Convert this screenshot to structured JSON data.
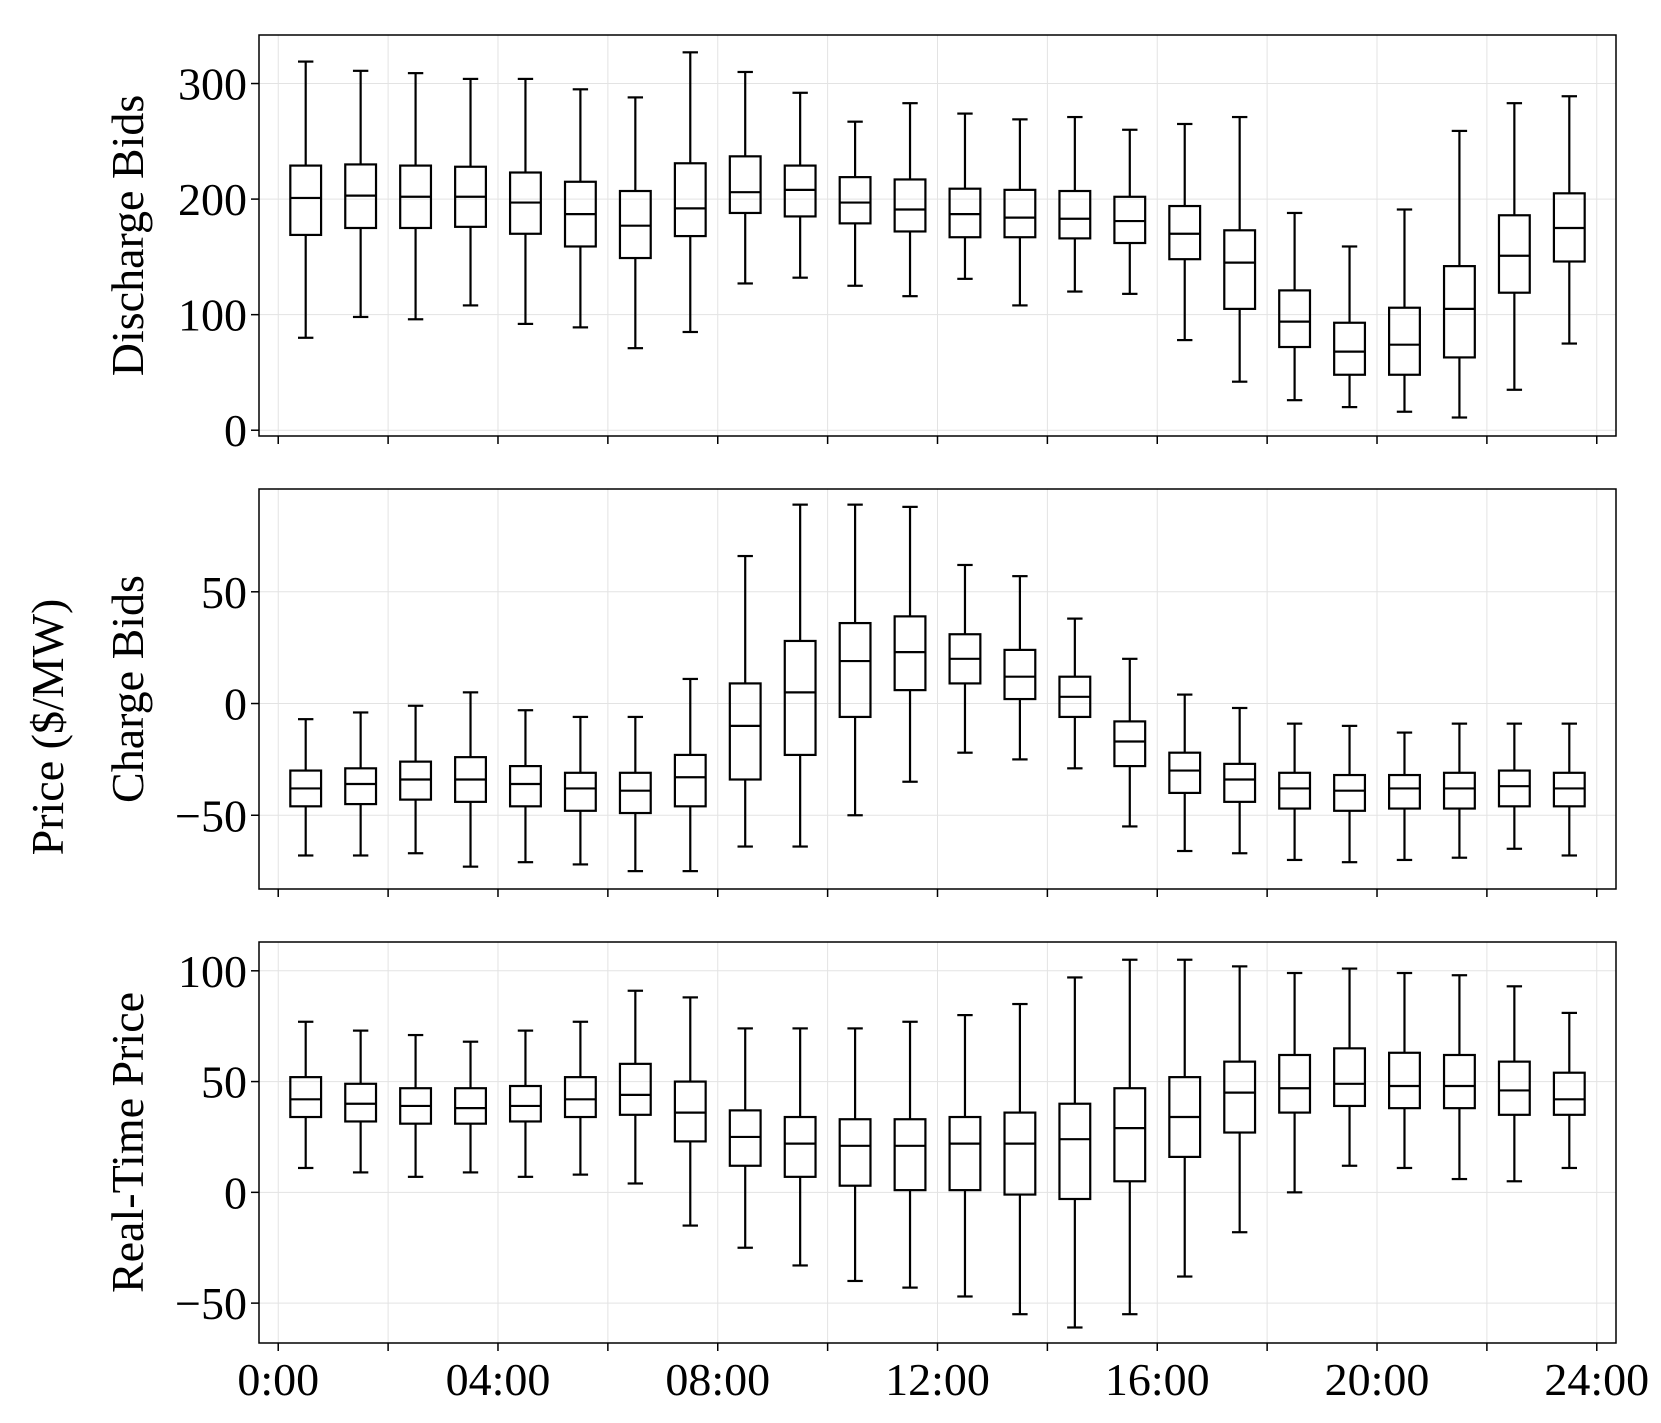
{
  "figure": {
    "shared_ylabel": "Price ($/MW)",
    "x_tick_labels": [
      "0:00",
      "04:00",
      "08:00",
      "12:00",
      "16:00",
      "20:00",
      "24:00"
    ]
  },
  "chart_data": [
    {
      "type": "box",
      "ylabel": "Discharge Bids",
      "ylim": [
        -5,
        342
      ],
      "yticks": [
        0,
        100,
        200,
        300
      ],
      "ytick_labels": [
        "0",
        "100",
        "200",
        "300"
      ],
      "grid": true,
      "line_color": "#000000",
      "grid_color": "#e3e3e3",
      "boxes": [
        {
          "hour": 0.5,
          "whislo": 80,
          "q1": 169,
          "med": 201,
          "q3": 229,
          "whishi": 319
        },
        {
          "hour": 1.5,
          "whislo": 98,
          "q1": 175,
          "med": 203,
          "q3": 230,
          "whishi": 311
        },
        {
          "hour": 2.5,
          "whislo": 96,
          "q1": 175,
          "med": 202,
          "q3": 229,
          "whishi": 309
        },
        {
          "hour": 3.5,
          "whislo": 108,
          "q1": 176,
          "med": 202,
          "q3": 228,
          "whishi": 304
        },
        {
          "hour": 4.5,
          "whislo": 92,
          "q1": 170,
          "med": 197,
          "q3": 223,
          "whishi": 304
        },
        {
          "hour": 5.5,
          "whislo": 89,
          "q1": 159,
          "med": 187,
          "q3": 215,
          "whishi": 295
        },
        {
          "hour": 6.5,
          "whislo": 71,
          "q1": 149,
          "med": 177,
          "q3": 207,
          "whishi": 288
        },
        {
          "hour": 7.5,
          "whislo": 85,
          "q1": 168,
          "med": 192,
          "q3": 231,
          "whishi": 327
        },
        {
          "hour": 8.5,
          "whislo": 127,
          "q1": 188,
          "med": 206,
          "q3": 237,
          "whishi": 310
        },
        {
          "hour": 9.5,
          "whislo": 132,
          "q1": 185,
          "med": 208,
          "q3": 229,
          "whishi": 292
        },
        {
          "hour": 10.5,
          "whislo": 125,
          "q1": 179,
          "med": 197,
          "q3": 219,
          "whishi": 267
        },
        {
          "hour": 11.5,
          "whislo": 116,
          "q1": 172,
          "med": 191,
          "q3": 217,
          "whishi": 283
        },
        {
          "hour": 12.5,
          "whislo": 131,
          "q1": 167,
          "med": 187,
          "q3": 209,
          "whishi": 274
        },
        {
          "hour": 13.5,
          "whislo": 108,
          "q1": 167,
          "med": 184,
          "q3": 208,
          "whishi": 269
        },
        {
          "hour": 14.5,
          "whislo": 120,
          "q1": 166,
          "med": 183,
          "q3": 207,
          "whishi": 271
        },
        {
          "hour": 15.5,
          "whislo": 118,
          "q1": 162,
          "med": 181,
          "q3": 202,
          "whishi": 260
        },
        {
          "hour": 16.5,
          "whislo": 78,
          "q1": 148,
          "med": 170,
          "q3": 194,
          "whishi": 265
        },
        {
          "hour": 17.5,
          "whislo": 42,
          "q1": 105,
          "med": 145,
          "q3": 173,
          "whishi": 271
        },
        {
          "hour": 18.5,
          "whislo": 26,
          "q1": 72,
          "med": 94,
          "q3": 121,
          "whishi": 188
        },
        {
          "hour": 19.5,
          "whislo": 20,
          "q1": 48,
          "med": 68,
          "q3": 93,
          "whishi": 159
        },
        {
          "hour": 20.5,
          "whislo": 16,
          "q1": 48,
          "med": 74,
          "q3": 106,
          "whishi": 191
        },
        {
          "hour": 21.5,
          "whislo": 11,
          "q1": 63,
          "med": 105,
          "q3": 142,
          "whishi": 259
        },
        {
          "hour": 22.5,
          "whislo": 35,
          "q1": 119,
          "med": 151,
          "q3": 186,
          "whishi": 283
        },
        {
          "hour": 23.5,
          "whislo": 75,
          "q1": 146,
          "med": 175,
          "q3": 205,
          "whishi": 289
        }
      ]
    },
    {
      "type": "box",
      "ylabel": "Charge Bids",
      "ylim": [
        -83,
        96
      ],
      "yticks": [
        -50,
        0,
        50
      ],
      "ytick_labels": [
        "−50",
        "0",
        "50"
      ],
      "grid": true,
      "line_color": "#000000",
      "grid_color": "#e3e3e3",
      "boxes": [
        {
          "hour": 0.5,
          "whislo": -68,
          "q1": -46,
          "med": -38,
          "q3": -30,
          "whishi": -7
        },
        {
          "hour": 1.5,
          "whislo": -68,
          "q1": -45,
          "med": -36,
          "q3": -29,
          "whishi": -4
        },
        {
          "hour": 2.5,
          "whislo": -67,
          "q1": -43,
          "med": -34,
          "q3": -26,
          "whishi": -1
        },
        {
          "hour": 3.5,
          "whislo": -73,
          "q1": -44,
          "med": -34,
          "q3": -24,
          "whishi": 5
        },
        {
          "hour": 4.5,
          "whislo": -71,
          "q1": -46,
          "med": -36,
          "q3": -28,
          "whishi": -3
        },
        {
          "hour": 5.5,
          "whislo": -72,
          "q1": -48,
          "med": -38,
          "q3": -31,
          "whishi": -6
        },
        {
          "hour": 6.5,
          "whislo": -75,
          "q1": -49,
          "med": -39,
          "q3": -31,
          "whishi": -6
        },
        {
          "hour": 7.5,
          "whislo": -75,
          "q1": -46,
          "med": -33,
          "q3": -23,
          "whishi": 11
        },
        {
          "hour": 8.5,
          "whislo": -64,
          "q1": -34,
          "med": -10,
          "q3": 9,
          "whishi": 66
        },
        {
          "hour": 9.5,
          "whislo": -64,
          "q1": -23,
          "med": 5,
          "q3": 28,
          "whishi": 89
        },
        {
          "hour": 10.5,
          "whislo": -50,
          "q1": -6,
          "med": 19,
          "q3": 36,
          "whishi": 89
        },
        {
          "hour": 11.5,
          "whislo": -35,
          "q1": 6,
          "med": 23,
          "q3": 39,
          "whishi": 88
        },
        {
          "hour": 12.5,
          "whislo": -22,
          "q1": 9,
          "med": 20,
          "q3": 31,
          "whishi": 62
        },
        {
          "hour": 13.5,
          "whislo": -25,
          "q1": 2,
          "med": 12,
          "q3": 24,
          "whishi": 57
        },
        {
          "hour": 14.5,
          "whislo": -29,
          "q1": -6,
          "med": 3,
          "q3": 12,
          "whishi": 38
        },
        {
          "hour": 15.5,
          "whislo": -55,
          "q1": -28,
          "med": -17,
          "q3": -8,
          "whishi": 20
        },
        {
          "hour": 16.5,
          "whislo": -66,
          "q1": -40,
          "med": -30,
          "q3": -22,
          "whishi": 4
        },
        {
          "hour": 17.5,
          "whislo": -67,
          "q1": -44,
          "med": -34,
          "q3": -27,
          "whishi": -2
        },
        {
          "hour": 18.5,
          "whislo": -70,
          "q1": -47,
          "med": -38,
          "q3": -31,
          "whishi": -9
        },
        {
          "hour": 19.5,
          "whislo": -71,
          "q1": -48,
          "med": -39,
          "q3": -32,
          "whishi": -10
        },
        {
          "hour": 20.5,
          "whislo": -70,
          "q1": -47,
          "med": -38,
          "q3": -32,
          "whishi": -13
        },
        {
          "hour": 21.5,
          "whislo": -69,
          "q1": -47,
          "med": -38,
          "q3": -31,
          "whishi": -9
        },
        {
          "hour": 22.5,
          "whislo": -65,
          "q1": -46,
          "med": -37,
          "q3": -30,
          "whishi": -9
        },
        {
          "hour": 23.5,
          "whislo": -68,
          "q1": -46,
          "med": -38,
          "q3": -31,
          "whishi": -9
        }
      ]
    },
    {
      "type": "box",
      "ylabel": "Real-Time Price",
      "ylim": [
        -68,
        113
      ],
      "yticks": [
        -50,
        0,
        50,
        100
      ],
      "ytick_labels": [
        "−50",
        "0",
        "50",
        "100"
      ],
      "grid": true,
      "line_color": "#000000",
      "grid_color": "#e3e3e3",
      "xticks": [
        0,
        4,
        8,
        12,
        16,
        20,
        24
      ],
      "xtick_labels": [
        "0:00",
        "04:00",
        "08:00",
        "12:00",
        "16:00",
        "20:00",
        "24:00"
      ],
      "boxes": [
        {
          "hour": 0.5,
          "whislo": 11,
          "q1": 34,
          "med": 42,
          "q3": 52,
          "whishi": 77
        },
        {
          "hour": 1.5,
          "whislo": 9,
          "q1": 32,
          "med": 40,
          "q3": 49,
          "whishi": 73
        },
        {
          "hour": 2.5,
          "whislo": 7,
          "q1": 31,
          "med": 39,
          "q3": 47,
          "whishi": 71
        },
        {
          "hour": 3.5,
          "whislo": 9,
          "q1": 31,
          "med": 38,
          "q3": 47,
          "whishi": 68
        },
        {
          "hour": 4.5,
          "whislo": 7,
          "q1": 32,
          "med": 39,
          "q3": 48,
          "whishi": 73
        },
        {
          "hour": 5.5,
          "whislo": 8,
          "q1": 34,
          "med": 42,
          "q3": 52,
          "whishi": 77
        },
        {
          "hour": 6.5,
          "whislo": 4,
          "q1": 35,
          "med": 44,
          "q3": 58,
          "whishi": 91
        },
        {
          "hour": 7.5,
          "whislo": -15,
          "q1": 23,
          "med": 36,
          "q3": 50,
          "whishi": 88
        },
        {
          "hour": 8.5,
          "whislo": -25,
          "q1": 12,
          "med": 25,
          "q3": 37,
          "whishi": 74
        },
        {
          "hour": 9.5,
          "whislo": -33,
          "q1": 7,
          "med": 22,
          "q3": 34,
          "whishi": 74
        },
        {
          "hour": 10.5,
          "whislo": -40,
          "q1": 3,
          "med": 21,
          "q3": 33,
          "whishi": 74
        },
        {
          "hour": 11.5,
          "whislo": -43,
          "q1": 1,
          "med": 21,
          "q3": 33,
          "whishi": 77
        },
        {
          "hour": 12.5,
          "whislo": -47,
          "q1": 1,
          "med": 22,
          "q3": 34,
          "whishi": 80
        },
        {
          "hour": 13.5,
          "whislo": -55,
          "q1": -1,
          "med": 22,
          "q3": 36,
          "whishi": 85
        },
        {
          "hour": 14.5,
          "whislo": -61,
          "q1": -3,
          "med": 24,
          "q3": 40,
          "whishi": 97
        },
        {
          "hour": 15.5,
          "whislo": -55,
          "q1": 5,
          "med": 29,
          "q3": 47,
          "whishi": 105
        },
        {
          "hour": 16.5,
          "whislo": -38,
          "q1": 16,
          "med": 34,
          "q3": 52,
          "whishi": 105
        },
        {
          "hour": 17.5,
          "whislo": -18,
          "q1": 27,
          "med": 45,
          "q3": 59,
          "whishi": 102
        },
        {
          "hour": 18.5,
          "whislo": 0,
          "q1": 36,
          "med": 47,
          "q3": 62,
          "whishi": 99
        },
        {
          "hour": 19.5,
          "whislo": 12,
          "q1": 39,
          "med": 49,
          "q3": 65,
          "whishi": 101
        },
        {
          "hour": 20.5,
          "whislo": 11,
          "q1": 38,
          "med": 48,
          "q3": 63,
          "whishi": 99
        },
        {
          "hour": 21.5,
          "whislo": 6,
          "q1": 38,
          "med": 48,
          "q3": 62,
          "whishi": 98
        },
        {
          "hour": 22.5,
          "whislo": 5,
          "q1": 35,
          "med": 46,
          "q3": 59,
          "whishi": 93
        },
        {
          "hour": 23.5,
          "whislo": 11,
          "q1": 35,
          "med": 42,
          "q3": 54,
          "whishi": 81
        }
      ]
    }
  ]
}
